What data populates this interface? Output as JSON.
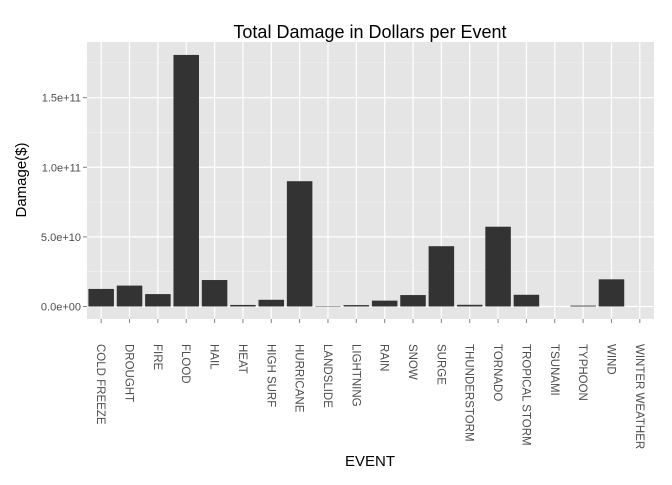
{
  "chart_data": {
    "type": "bar",
    "title": "Total Damage in Dollars per Event",
    "xlabel": "EVENT",
    "ylabel": "Damage($)",
    "categories": [
      "COLD FREEZE",
      "DROUGHT",
      "FIRE",
      "FLOOD",
      "HAIL",
      "HEAT",
      "HIGH SURF",
      "HURRICANE",
      "LANDSLIDE",
      "LIGHTNING",
      "RAIN",
      "SNOW",
      "SURGE",
      "THUNDERSTORM",
      "TORNADO",
      "TROPICAL STORM",
      "TSUNAMI",
      "TYPHOON",
      "WIND",
      "WINTER WEATHER"
    ],
    "values": [
      12600000000,
      15000000000,
      8900000000,
      180700000000,
      19000000000,
      1100000000,
      4800000000,
      90000000000,
      300000000,
      1000000000,
      4200000000,
      8200000000,
      43300000000,
      1200000000,
      57300000000,
      8400000000,
      0,
      600000000,
      19500000000,
      0
    ],
    "yticks": [
      0,
      50000000000,
      100000000000,
      150000000000
    ],
    "ytick_labels": [
      "0.0e+00",
      "5.0e+10",
      "1.0e+11",
      "1.5e+11"
    ],
    "ylim": [
      -9000000000,
      190000000000
    ],
    "grid": true,
    "colors": {
      "panel_background": "#e5e5e5",
      "grid_major": "#ffffff",
      "grid_minor": "#f2f2f2",
      "bar": "#333333",
      "tick_text": "#4d4d4d",
      "axis_text": "#000000"
    }
  }
}
